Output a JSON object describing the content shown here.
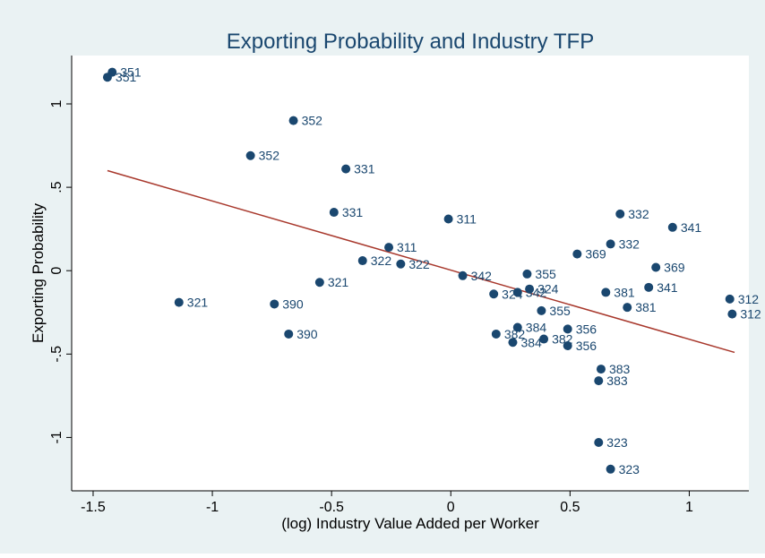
{
  "chart_data": {
    "type": "scatter",
    "title": "Exporting Probability and Industry TFP",
    "x_label": "(log) Industry Value Added per Worker",
    "y_label": "Exporting Probability",
    "x": [
      -1.42,
      -1.44,
      -0.66,
      -0.84,
      -0.44,
      -0.49,
      -0.01,
      -0.26,
      -0.37,
      -0.21,
      0.05,
      -0.55,
      -1.14,
      -0.74,
      -0.68,
      0.32,
      0.18,
      0.33,
      0.28,
      0.38,
      0.28,
      0.19,
      0.26,
      0.39,
      0.49,
      0.49,
      0.53,
      0.71,
      0.67,
      0.93,
      0.86,
      0.65,
      0.83,
      0.74,
      1.17,
      1.18,
      0.63,
      0.62,
      0.62,
      0.67
    ],
    "values": [
      1.19,
      1.16,
      0.9,
      0.69,
      0.61,
      0.35,
      0.31,
      0.14,
      0.06,
      0.04,
      -0.03,
      -0.07,
      -0.19,
      -0.2,
      -0.38,
      -0.02,
      -0.14,
      -0.11,
      -0.13,
      -0.24,
      -0.34,
      -0.38,
      -0.43,
      -0.41,
      -0.35,
      -0.45,
      0.1,
      0.34,
      0.16,
      0.26,
      0.02,
      -0.13,
      -0.1,
      -0.22,
      -0.17,
      -0.26,
      -0.59,
      -0.66,
      -1.03,
      -1.19
    ],
    "point_labels": [
      "351",
      "351",
      "352",
      "352",
      "331",
      "331",
      "311",
      "311",
      "322",
      "322",
      "342",
      "321",
      "321",
      "390",
      "390",
      "355",
      "324",
      "324",
      "342",
      "355",
      "384",
      "382",
      "384",
      "382",
      "356",
      "356",
      "369",
      "332",
      "332",
      "341",
      "369",
      "381",
      "341",
      "381",
      "312",
      "312",
      "383",
      "383",
      "323",
      "323"
    ],
    "color": "#1a476f",
    "fit": {
      "x": [
        -1.44,
        1.19
      ],
      "values": [
        0.6,
        -0.49
      ],
      "color": "#a8382c"
    },
    "xlim": [
      -1.59,
      1.25
    ],
    "ylim": [
      -1.32,
      1.29
    ],
    "xticks": [
      -1.5,
      -1,
      -0.5,
      0,
      0.5,
      1
    ],
    "yticks": [
      -1,
      {
        "value": -0.5,
        "label": "-.5"
      },
      0,
      {
        "value": 0.5,
        "label": ".5"
      },
      1
    ]
  }
}
